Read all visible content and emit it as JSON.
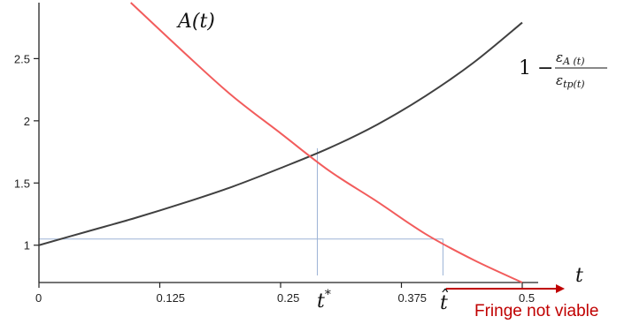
{
  "chart_data": {
    "type": "line",
    "x_ticks": [
      "0",
      "0.125",
      "0.25",
      "0.375",
      "0.5"
    ],
    "y_ticks": [
      "1",
      "1.5",
      "2",
      "2.5"
    ],
    "xlim": [
      0,
      0.5
    ],
    "ylim": [
      0.7,
      2.95
    ],
    "grid": false,
    "series": [
      {
        "name": "1 − ε_A(t) / ε_tp(t)",
        "color": "#404040",
        "x": [
          0,
          0.05,
          0.1,
          0.15,
          0.2,
          0.25,
          0.3,
          0.35,
          0.4,
          0.45,
          0.5
        ],
        "y": [
          1.0,
          1.11,
          1.22,
          1.34,
          1.47,
          1.62,
          1.78,
          1.97,
          2.2,
          2.47,
          2.79
        ]
      },
      {
        "name": "A(t)",
        "color": "#f25c5c",
        "x": [
          0.095,
          0.15,
          0.2,
          0.25,
          0.3,
          0.35,
          0.4,
          0.45,
          0.5
        ],
        "y": [
          2.95,
          2.55,
          2.2,
          1.9,
          1.6,
          1.35,
          1.09,
          0.88,
          0.7
        ]
      }
    ],
    "reference_lines": [
      {
        "x": 0.288,
        "y": 1.78,
        "label": "t*"
      },
      {
        "x": 0.418,
        "y": 1.05,
        "label": "t̂"
      }
    ],
    "labels": {
      "curve_a": "A(t)",
      "curve_b_prefix": "1 −",
      "curve_b_num": "ε",
      "curve_b_num_sub": "A (t)",
      "curve_b_den": "ε",
      "curve_b_den_sub": "tp(t)",
      "x_axis": "t",
      "t_star": "t",
      "t_star_sup": "*",
      "t_hat": "t̂",
      "annotation": "Fringe not viable"
    },
    "colors": {
      "axis": "#222222",
      "guide": "#9db4d6",
      "annotation": "#c00000"
    }
  }
}
